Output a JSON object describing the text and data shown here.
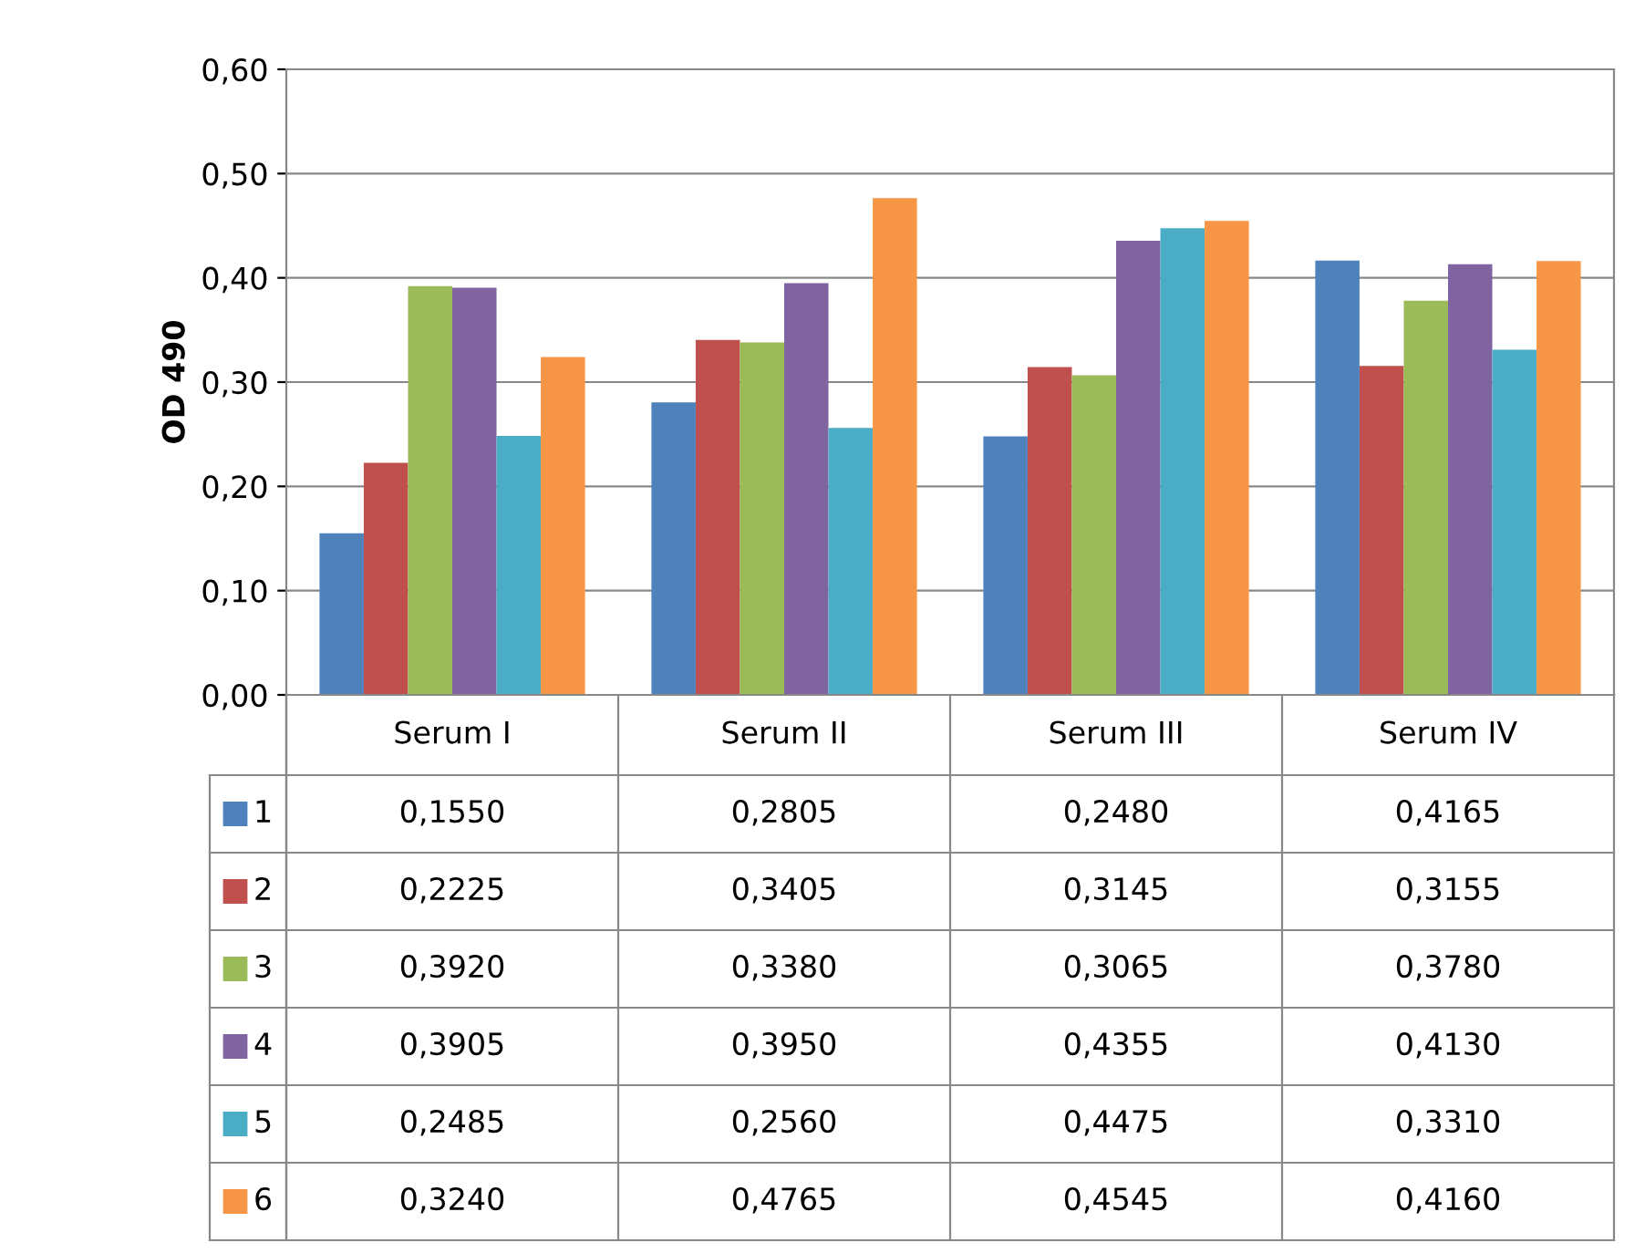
{
  "chart_data": {
    "type": "bar",
    "ylabel": "OD 490",
    "categories": [
      "Serum I",
      "Serum II",
      "Serum III",
      "Serum IV"
    ],
    "ylim": [
      0,
      0.6
    ],
    "yticks": [
      {
        "value": 0,
        "label": "0,00"
      },
      {
        "value": 0.1,
        "label": "0,10"
      },
      {
        "value": 0.2,
        "label": "0,20"
      },
      {
        "value": 0.3,
        "label": "0,30"
      },
      {
        "value": 0.4,
        "label": "0,40"
      },
      {
        "value": 0.5,
        "label": "0,50"
      },
      {
        "value": 0.6,
        "label": "0,60"
      }
    ],
    "grid": "y",
    "legend": "bottom left",
    "series": [
      {
        "name": "1",
        "color": "#4f81bd",
        "values": [
          0.155,
          0.2805,
          0.248,
          0.4165
        ],
        "value_labels": [
          "0,1550",
          "0,2805",
          "0,2480",
          "0,4165"
        ]
      },
      {
        "name": "2",
        "color": "#c0504d",
        "values": [
          0.2225,
          0.3405,
          0.3145,
          0.3155
        ],
        "value_labels": [
          "0,2225",
          "0,3405",
          "0,3145",
          "0,3155"
        ]
      },
      {
        "name": "3",
        "color": "#9bbb59",
        "values": [
          0.392,
          0.338,
          0.3065,
          0.378
        ],
        "value_labels": [
          "0,3920",
          "0,3380",
          "0,3065",
          "0,3780"
        ]
      },
      {
        "name": "4",
        "color": "#8064a2",
        "values": [
          0.3905,
          0.395,
          0.4355,
          0.413
        ],
        "value_labels": [
          "0,3905",
          "0,3950",
          "0,4355",
          "0,4130"
        ]
      },
      {
        "name": "5",
        "color": "#4bacc6",
        "values": [
          0.2485,
          0.256,
          0.4475,
          0.331
        ],
        "value_labels": [
          "0,2485",
          "0,2560",
          "0,4475",
          "0,3310"
        ]
      },
      {
        "name": "6",
        "color": "#f79646",
        "values": [
          0.324,
          0.4765,
          0.4545,
          0.416
        ],
        "value_labels": [
          "0,3240",
          "0,4765",
          "0,4545",
          "0,4160"
        ]
      }
    ]
  }
}
